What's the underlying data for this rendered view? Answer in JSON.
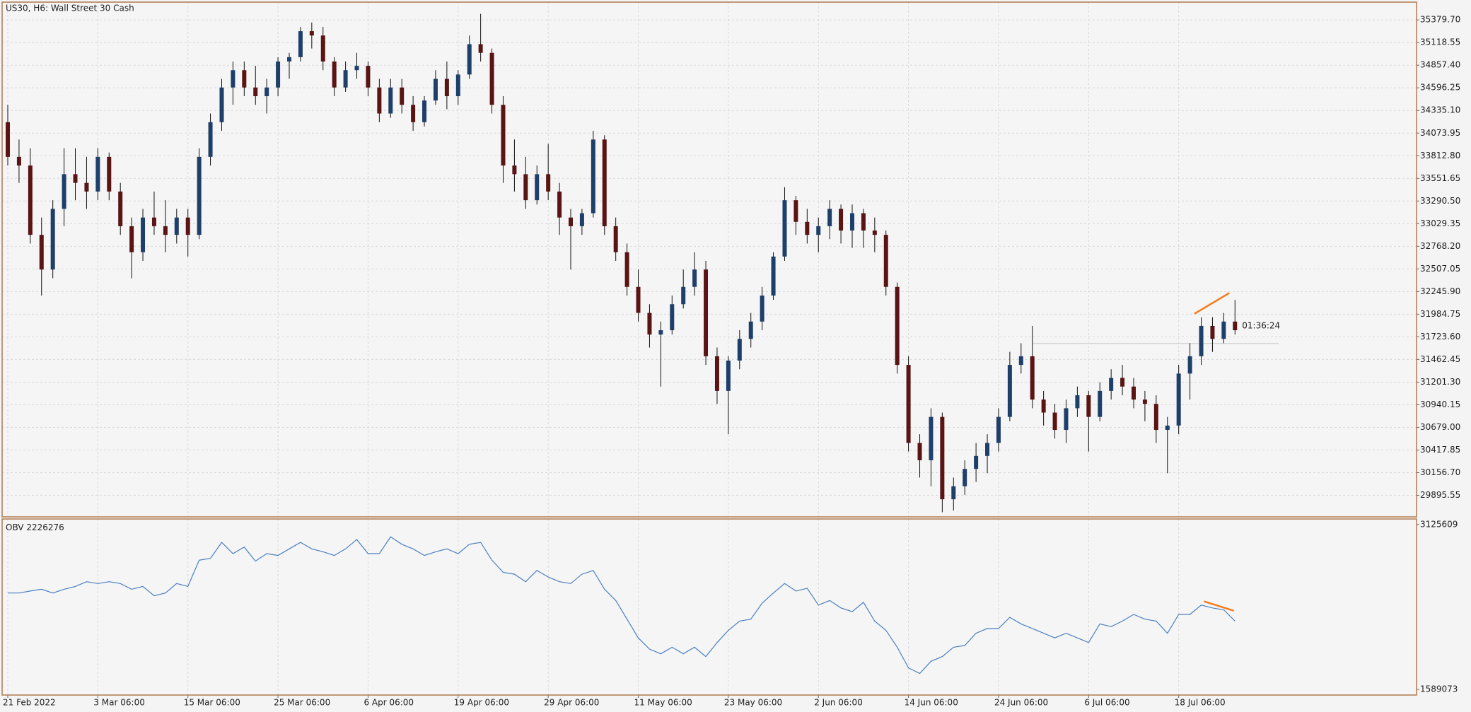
{
  "chart_data": [
    {
      "type": "candlestick",
      "title": "US30, H6:  Wall Street 30 Cash",
      "countdown": "01:36:24",
      "up_color": "#1f3f6b",
      "down_color": "#5a1414",
      "wick_color": "#111111",
      "ylim": [
        29647,
        35585
      ],
      "yticks": [
        {
          "value": 35379.7,
          "label": "35379.70"
        },
        {
          "value": 35118.55,
          "label": "35118.55"
        },
        {
          "value": 34857.4,
          "label": "34857.40"
        },
        {
          "value": 34596.25,
          "label": "34596.25"
        },
        {
          "value": 34335.1,
          "label": "34335.10"
        },
        {
          "value": 34073.95,
          "label": "34073.95"
        },
        {
          "value": 33812.8,
          "label": "33812.80"
        },
        {
          "value": 33551.65,
          "label": "33551.65"
        },
        {
          "value": 33290.5,
          "label": "33290.50"
        },
        {
          "value": 33029.35,
          "label": "33029.35"
        },
        {
          "value": 32768.2,
          "label": "32768.20"
        },
        {
          "value": 32507.05,
          "label": "32507.05"
        },
        {
          "value": 32245.9,
          "label": "32245.90"
        },
        {
          "value": 31984.75,
          "label": "31984.75"
        },
        {
          "value": 31723.6,
          "label": "31723.60"
        },
        {
          "value": 31462.45,
          "label": "31462.45"
        },
        {
          "value": 31201.3,
          "label": "31201.30"
        },
        {
          "value": 30940.15,
          "label": "30940.15"
        },
        {
          "value": 30679,
          "label": "30679.00"
        },
        {
          "value": 30417.85,
          "label": "30417.85"
        },
        {
          "value": 30156.7,
          "label": "30156.70"
        },
        {
          "value": 29895.55,
          "label": "29895.55"
        }
      ],
      "grid": true,
      "categories": [
        "21 Feb 2022",
        null,
        null,
        null,
        null,
        null,
        null,
        null,
        "3 Mar 06:00",
        null,
        null,
        null,
        null,
        null,
        null,
        null,
        "15 Mar 06:00",
        null,
        null,
        null,
        null,
        null,
        null,
        null,
        "25 Mar 06:00",
        null,
        null,
        null,
        null,
        null,
        null,
        null,
        "6 Apr 06:00",
        null,
        null,
        null,
        null,
        null,
        null,
        null,
        "19 Apr 06:00",
        null,
        null,
        null,
        null,
        null,
        null,
        null,
        "29 Apr 06:00",
        null,
        null,
        null,
        null,
        null,
        null,
        null,
        "11 May 06:00",
        null,
        null,
        null,
        null,
        null,
        null,
        null,
        "23 May 06:00",
        null,
        null,
        null,
        null,
        null,
        null,
        null,
        "2 Jun 06:00",
        null,
        null,
        null,
        null,
        null,
        null,
        null,
        "14 Jun 06:00",
        null,
        null,
        null,
        null,
        null,
        null,
        null,
        "24 Jun 06:00",
        null,
        null,
        null,
        null,
        null,
        null,
        null,
        "6 Jul 06:00",
        null,
        null,
        null,
        null,
        null,
        null,
        null,
        "18 Jul 06:00",
        null,
        null,
        null,
        null,
        null
      ],
      "ohlc": [
        [
          34200,
          34400,
          33700,
          33800
        ],
        [
          33800,
          34000,
          33500,
          33700
        ],
        [
          33700,
          33900,
          32800,
          32900
        ],
        [
          32900,
          33100,
          32200,
          32500
        ],
        [
          32500,
          33300,
          32400,
          33200
        ],
        [
          33200,
          33900,
          33000,
          33600
        ],
        [
          33600,
          33900,
          33300,
          33500
        ],
        [
          33500,
          33800,
          33200,
          33400
        ],
        [
          33400,
          33900,
          33300,
          33800
        ],
        [
          33800,
          33850,
          33300,
          33400
        ],
        [
          33400,
          33500,
          32900,
          33000
        ],
        [
          33000,
          33100,
          32400,
          32700
        ],
        [
          32700,
          33200,
          32600,
          33100
        ],
        [
          33100,
          33400,
          32900,
          33000
        ],
        [
          33000,
          33300,
          32700,
          32900
        ],
        [
          32900,
          33200,
          32800,
          33100
        ],
        [
          33100,
          33200,
          32650,
          32900
        ],
        [
          32900,
          33900,
          32850,
          33800
        ],
        [
          33800,
          34300,
          33700,
          34200
        ],
        [
          34200,
          34700,
          34100,
          34600
        ],
        [
          34600,
          34900,
          34400,
          34800
        ],
        [
          34800,
          34900,
          34500,
          34600
        ],
        [
          34600,
          34850,
          34400,
          34500
        ],
        [
          34500,
          34700,
          34300,
          34600
        ],
        [
          34600,
          34950,
          34500,
          34900
        ],
        [
          34900,
          35000,
          34700,
          34950
        ],
        [
          34950,
          35300,
          34900,
          35250
        ],
        [
          35250,
          35350,
          35050,
          35200
        ],
        [
          35200,
          35300,
          34800,
          34900
        ],
        [
          34900,
          34950,
          34500,
          34600
        ],
        [
          34600,
          34900,
          34550,
          34800
        ],
        [
          34800,
          35000,
          34700,
          34850
        ],
        [
          34850,
          34900,
          34500,
          34600
        ],
        [
          34600,
          34700,
          34200,
          34300
        ],
        [
          34300,
          34700,
          34250,
          34600
        ],
        [
          34600,
          34700,
          34300,
          34400
        ],
        [
          34400,
          34500,
          34100,
          34200
        ],
        [
          34200,
          34500,
          34150,
          34450
        ],
        [
          34450,
          34800,
          34400,
          34700
        ],
        [
          34700,
          34900,
          34350,
          34500
        ],
        [
          34500,
          34800,
          34400,
          34750
        ],
        [
          34750,
          35200,
          34700,
          35100
        ],
        [
          35100,
          35450,
          34900,
          35000
        ],
        [
          35000,
          35050,
          34300,
          34400
        ],
        [
          34400,
          34500,
          33500,
          33700
        ],
        [
          33700,
          34000,
          33400,
          33600
        ],
        [
          33600,
          33800,
          33200,
          33300
        ],
        [
          33300,
          33700,
          33250,
          33600
        ],
        [
          33600,
          33950,
          33300,
          33400
        ],
        [
          33400,
          33500,
          32900,
          33100
        ],
        [
          33100,
          33200,
          32500,
          33000
        ],
        [
          33000,
          33200,
          32900,
          33150
        ],
        [
          33150,
          34100,
          33100,
          34000
        ],
        [
          34000,
          34050,
          32900,
          33000
        ],
        [
          33000,
          33100,
          32600,
          32700
        ],
        [
          32700,
          32800,
          32200,
          32300
        ],
        [
          32300,
          32500,
          31900,
          32000
        ],
        [
          32000,
          32100,
          31600,
          31750
        ],
        [
          31750,
          31900,
          31150,
          31800
        ],
        [
          31800,
          32200,
          31750,
          32100
        ],
        [
          32100,
          32500,
          32050,
          32300
        ],
        [
          32300,
          32700,
          32200,
          32500
        ],
        [
          32500,
          32600,
          31400,
          31500
        ],
        [
          31500,
          31600,
          30950,
          31100
        ],
        [
          31100,
          31500,
          30600,
          31450
        ],
        [
          31450,
          31800,
          31350,
          31700
        ],
        [
          31700,
          32000,
          31600,
          31900
        ],
        [
          31900,
          32300,
          31800,
          32200
        ],
        [
          32200,
          32700,
          32150,
          32650
        ],
        [
          32650,
          33450,
          32600,
          33300
        ],
        [
          33300,
          33350,
          32900,
          33050
        ],
        [
          33050,
          33200,
          32800,
          32900
        ],
        [
          32900,
          33100,
          32700,
          33000
        ],
        [
          33000,
          33300,
          32850,
          33200
        ],
        [
          33200,
          33250,
          32800,
          32950
        ],
        [
          32950,
          33250,
          32750,
          33150
        ],
        [
          33150,
          33200,
          32750,
          32950
        ],
        [
          32950,
          33100,
          32700,
          32900
        ],
        [
          32900,
          32950,
          32200,
          32300
        ],
        [
          32300,
          32350,
          31300,
          31400
        ],
        [
          31400,
          31500,
          30400,
          30500
        ],
        [
          30500,
          30600,
          30100,
          30300
        ],
        [
          30300,
          30900,
          30000,
          30800
        ],
        [
          30800,
          30850,
          29700,
          29850
        ],
        [
          29850,
          30100,
          29720,
          30000
        ],
        [
          30000,
          30300,
          29900,
          30200
        ],
        [
          30200,
          30500,
          30050,
          30350
        ],
        [
          30350,
          30600,
          30150,
          30500
        ],
        [
          30500,
          30900,
          30400,
          30800
        ],
        [
          30800,
          31550,
          30750,
          31400
        ],
        [
          31400,
          31650,
          31300,
          31500
        ],
        [
          31500,
          31850,
          30900,
          31000
        ],
        [
          31000,
          31100,
          30700,
          30850
        ],
        [
          30850,
          30950,
          30550,
          30650
        ],
        [
          30650,
          31000,
          30500,
          30900
        ],
        [
          30900,
          31150,
          30800,
          31050
        ],
        [
          31050,
          31100,
          30400,
          30800
        ],
        [
          30800,
          31200,
          30750,
          31100
        ],
        [
          31100,
          31350,
          31000,
          31250
        ],
        [
          31250,
          31400,
          31050,
          31150
        ],
        [
          31150,
          31250,
          30900,
          31000
        ],
        [
          31000,
          31100,
          30750,
          30950
        ],
        [
          30950,
          31050,
          30500,
          30650
        ],
        [
          30650,
          30800,
          30150,
          30700
        ],
        [
          30700,
          31400,
          30600,
          31300
        ],
        [
          31300,
          31650,
          31000,
          31500
        ],
        [
          31500,
          31950,
          31400,
          31850
        ],
        [
          31850,
          31950,
          31550,
          31700
        ],
        [
          31700,
          32000,
          31650,
          31900
        ],
        [
          31900,
          32150,
          31750,
          31800
        ]
      ],
      "level": {
        "value": 31647,
        "from": 91,
        "color": "#c8c8c8"
      },
      "trendline": {
        "x": [
          105.4,
          108.5
        ],
        "y": [
          31990,
          32230
        ],
        "color": "#f57c1f"
      }
    },
    {
      "type": "line",
      "name": "OBV",
      "color": "#4a7fc0",
      "ylim": [
        1536690,
        3177992
      ],
      "yticks": [
        3125609,
        1589073
      ],
      "values": [
        2488000,
        2488000,
        2506000,
        2523000,
        2488000,
        2523000,
        2549000,
        2593000,
        2576000,
        2593000,
        2576000,
        2523000,
        2549000,
        2462000,
        2488000,
        2576000,
        2549000,
        2794000,
        2811000,
        2960000,
        2855000,
        2916000,
        2785000,
        2855000,
        2838000,
        2899000,
        2960000,
        2899000,
        2872000,
        2838000,
        2899000,
        2986000,
        2855000,
        2855000,
        3012000,
        2942000,
        2899000,
        2838000,
        2872000,
        2899000,
        2855000,
        2942000,
        2960000,
        2794000,
        2680000,
        2663000,
        2593000,
        2698000,
        2637000,
        2593000,
        2576000,
        2663000,
        2698000,
        2523000,
        2418000,
        2244000,
        2069000,
        1965000,
        1921000,
        1982000,
        1921000,
        1982000,
        1895000,
        2026000,
        2139000,
        2226000,
        2244000,
        2392000,
        2488000,
        2576000,
        2506000,
        2532000,
        2375000,
        2418000,
        2349000,
        2314000,
        2401000,
        2226000,
        2139000,
        1982000,
        1790000,
        1738000,
        1851000,
        1895000,
        1982000,
        1999000,
        2113000,
        2157000,
        2157000,
        2261000,
        2200000,
        2157000,
        2113000,
        2069000,
        2113000,
        2069000,
        2026000,
        2200000,
        2174000,
        2226000,
        2288000,
        2244000,
        2226000,
        2113000,
        2288000,
        2288000,
        2375000,
        2349000,
        2331000,
        2226276
      ],
      "trendline": {
        "x": [
          106.25,
          108.9
        ],
        "y": [
          2410000,
          2322000
        ],
        "color": "#f57c1f"
      }
    }
  ]
}
